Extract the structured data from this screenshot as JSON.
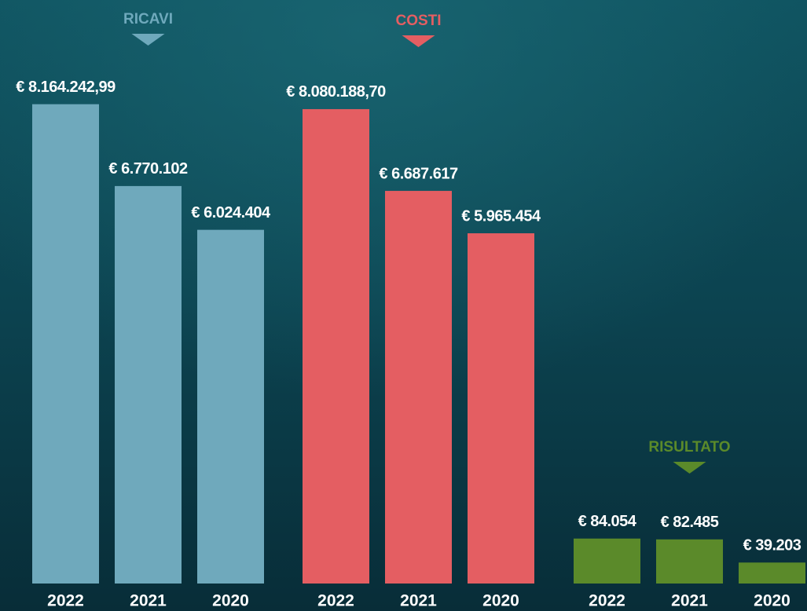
{
  "chart_data": [
    {
      "type": "bar",
      "title": "RICAVI",
      "categories": [
        "2022",
        "2021",
        "2020"
      ],
      "values": [
        8164242.99,
        6770102,
        6024404
      ],
      "value_labels": [
        "€ 8.164.242,99",
        "€ 6.770.102",
        "€ 6.024.404"
      ],
      "color": "#6fa9bc",
      "ylim": [
        0,
        8200000
      ]
    },
    {
      "type": "bar",
      "title": "COSTI",
      "categories": [
        "2022",
        "2021",
        "2020"
      ],
      "values": [
        8080188.7,
        6687617,
        5965454
      ],
      "value_labels": [
        "€ 8.080.188,70",
        "€ 6.687.617",
        "€ 5.965.454"
      ],
      "color": "#e45e62",
      "ylim": [
        0,
        8200000
      ]
    },
    {
      "type": "bar",
      "title": "RISULTATO",
      "categories": [
        "2022",
        "2021",
        "2020"
      ],
      "values": [
        84054,
        82485,
        39203
      ],
      "value_labels": [
        "€ 84.054",
        "€ 82.485",
        "€ 39.203"
      ],
      "color": "#5b8a2a",
      "ylim": [
        0,
        900000
      ]
    }
  ]
}
